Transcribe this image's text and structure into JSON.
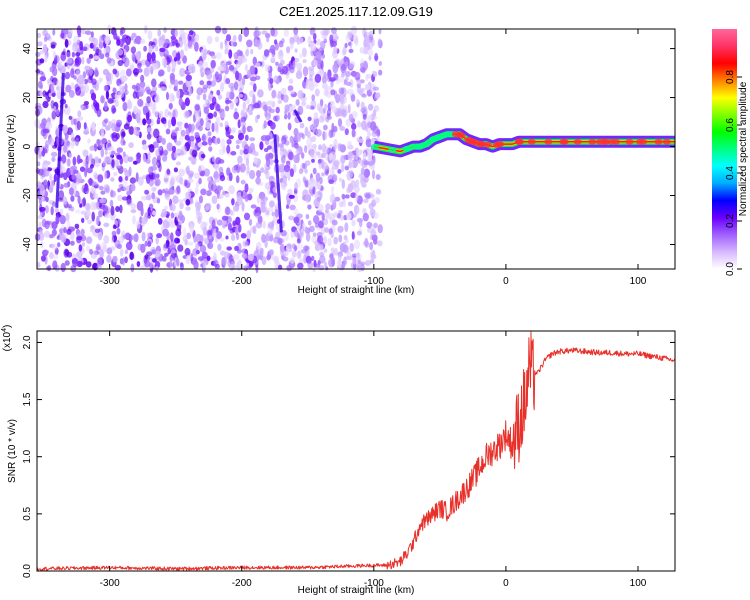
{
  "title": "C2E1.2025.117.12.09.G19",
  "chart_data": [
    {
      "type": "heatmap",
      "xlabel": "Height of straight line (km)",
      "ylabel": "Frequency (Hz)",
      "xlim": [
        -355,
        128
      ],
      "ylim": [
        -50,
        48
      ],
      "xticks": [
        -300,
        -200,
        -100,
        0,
        100
      ],
      "yticks": [
        -40,
        -20,
        0,
        20,
        40
      ],
      "colorbar": {
        "label": "Normalized spectral amplitude",
        "range": [
          0,
          1
        ],
        "ticks": [
          "0.0",
          "0.2",
          "0.4",
          "0.6",
          "0.8"
        ],
        "colors": [
          "#ffffff",
          "#d8b8ff",
          "#a060ff",
          "#6a00ff",
          "#0000ff",
          "#00aaff",
          "#00ffff",
          "#00ff80",
          "#00ff00",
          "#80ff00",
          "#ffff00",
          "#ff8000",
          "#ff0000",
          "#ff3366",
          "#ff6699"
        ]
      },
      "ridge": {
        "x": [
          -100,
          -90,
          -80,
          -70,
          -65,
          -60,
          -55,
          -50,
          -45,
          -40,
          -35,
          -30,
          -25,
          -20,
          -15,
          -10,
          -5,
          0,
          5,
          10,
          20,
          40,
          60,
          80,
          100,
          128
        ],
        "y": [
          0,
          -1,
          -2,
          0,
          0,
          1,
          3,
          4,
          5,
          5,
          5,
          3,
          2,
          1,
          1,
          0,
          1,
          1,
          1,
          2,
          2,
          2,
          2,
          2,
          2,
          2
        ]
      },
      "noise_region": {
        "x_start": -355,
        "x_end": -100
      }
    },
    {
      "type": "line",
      "xlabel": "Height of straight line (km)",
      "ylabel": "SNR (10 * v/v)",
      "y_exponent": "(x10",
      "y_exponent_power": "4",
      "y_exponent_close": ")",
      "xlim": [
        -355,
        128
      ],
      "ylim": [
        0,
        2.1
      ],
      "xticks": [
        -300,
        -200,
        -100,
        0,
        100
      ],
      "yticks": [
        "0.0",
        "0.5",
        "1.0",
        "1.5",
        "2.0"
      ],
      "series": [
        {
          "color": "#e8302a",
          "x": [
            -355,
            -300,
            -250,
            -200,
            -150,
            -100,
            -90,
            -80,
            -75,
            -70,
            -65,
            -60,
            -55,
            -50,
            -45,
            -40,
            -35,
            -30,
            -25,
            -20,
            -15,
            -10,
            -5,
            0,
            5,
            10,
            15,
            18,
            20,
            25,
            30,
            35,
            40,
            50,
            60,
            70,
            80,
            90,
            100,
            110,
            120,
            128
          ],
          "y": [
            0.02,
            0.03,
            0.02,
            0.03,
            0.03,
            0.05,
            0.05,
            0.08,
            0.15,
            0.25,
            0.4,
            0.45,
            0.5,
            0.55,
            0.52,
            0.58,
            0.65,
            0.72,
            0.8,
            0.9,
            1.0,
            1.05,
            1.1,
            1.2,
            1.1,
            1.3,
            1.5,
            1.8,
            1.7,
            1.75,
            1.85,
            1.9,
            1.92,
            1.93,
            1.92,
            1.91,
            1.91,
            1.9,
            1.9,
            1.88,
            1.86,
            1.84
          ]
        }
      ]
    }
  ]
}
